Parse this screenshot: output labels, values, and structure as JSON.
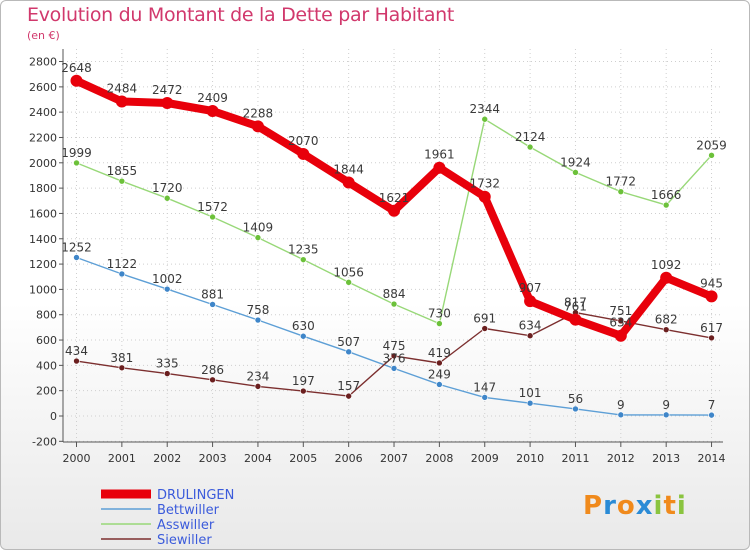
{
  "header": {
    "title": "Evolution du Montant de la Dette par Habitant",
    "unit": "(en €)"
  },
  "logo": {
    "letters": [
      "P",
      "r",
      "o",
      "x",
      "i",
      "t",
      "i"
    ],
    "colors": [
      "#f08a1c",
      "#2a8bd6",
      "#f08a1c",
      "#2a8bd6",
      "#8ac43f",
      "#f08a1c",
      "#8ac43f"
    ]
  },
  "chart_data": {
    "type": "line",
    "title": "Evolution du Montant de la Dette par Habitant",
    "ylabel": "(en €)",
    "x": [
      "2000",
      "2001",
      "2002",
      "2003",
      "2004",
      "2005",
      "2006",
      "2007",
      "2008",
      "2009",
      "2010",
      "2011",
      "2012",
      "2013",
      "2014"
    ],
    "ylim": [
      -200,
      2800
    ],
    "yticks": [
      -200,
      0,
      200,
      400,
      600,
      800,
      1000,
      1200,
      1400,
      1600,
      1800,
      2000,
      2200,
      2400,
      2600,
      2800
    ],
    "grid": true,
    "legend_position": "bottom-left",
    "series": [
      {
        "name": "DRULINGEN",
        "color": "#e8000b",
        "marker_color": "#e8000b",
        "values": [
          2648,
          2484,
          2472,
          2409,
          2288,
          2070,
          1844,
          1621,
          1961,
          1732,
          907,
          761,
          634,
          1092,
          945
        ],
        "labels": [
          "2648",
          "2484",
          "2472",
          "2409",
          "2288",
          "2070",
          "1844",
          "1621",
          "1961",
          "1732",
          "907",
          "761",
          "634",
          "1092",
          "945"
        ]
      },
      {
        "name": "Bettwiller",
        "color": "#5d9fd6",
        "marker_color": "#3f86c9",
        "values": [
          1252,
          1122,
          1002,
          881,
          758,
          630,
          507,
          376,
          249,
          147,
          101,
          56,
          9,
          9,
          7
        ],
        "labels": [
          "1252",
          "1122",
          "1002",
          "881",
          "758",
          "630",
          "507",
          "376",
          "249",
          "147",
          "101",
          "56",
          "9",
          "9",
          "7"
        ]
      },
      {
        "name": "Asswiller",
        "color": "#98d878",
        "marker_color": "#6cc13a",
        "values": [
          1999,
          1855,
          1720,
          1572,
          1409,
          1235,
          1056,
          884,
          730,
          2344,
          2124,
          1924,
          1772,
          1666,
          2059
        ],
        "labels": [
          "1999",
          "1855",
          "1720",
          "1572",
          "1409",
          "1235",
          "1056",
          "884",
          "730",
          "2344",
          "2124",
          "1924",
          "1772",
          "1666",
          "2059"
        ]
      },
      {
        "name": "Siewiller",
        "color": "#7c2f2f",
        "marker_color": "#6b1f1f",
        "values": [
          434,
          381,
          335,
          286,
          234,
          197,
          157,
          475,
          419,
          691,
          634,
          817,
          751,
          682,
          617
        ],
        "labels": [
          "434",
          "381",
          "335",
          "286",
          "234",
          "197",
          "157",
          "475",
          "419",
          "691",
          "634",
          "817",
          "751",
          "682",
          "617"
        ]
      }
    ]
  }
}
